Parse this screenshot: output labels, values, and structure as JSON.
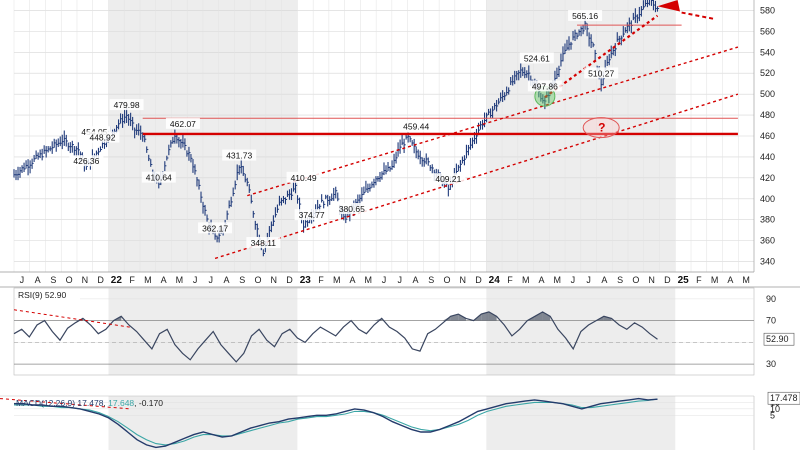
{
  "chart_data": [
    {
      "type": "ohlc",
      "title": "",
      "ylim": [
        330,
        590
      ],
      "y_ticks": [
        340,
        360,
        380,
        400,
        420,
        440,
        460,
        480,
        500,
        520,
        540,
        560,
        580
      ],
      "x_months": [
        "J",
        "A",
        "S",
        "O",
        "N",
        "D",
        "22",
        "F",
        "M",
        "A",
        "M",
        "J",
        "J",
        "A",
        "S",
        "O",
        "N",
        "D",
        "23",
        "F",
        "M",
        "A",
        "M",
        "J",
        "J",
        "A",
        "S",
        "O",
        "N",
        "D",
        "24",
        "F",
        "M",
        "A",
        "M",
        "J",
        "J",
        "A",
        "S",
        "O",
        "N",
        "D",
        "25",
        "F",
        "M",
        "A",
        "M"
      ],
      "price_path": [
        [
          0,
          423
        ],
        [
          3,
          440
        ],
        [
          6,
          456
        ],
        [
          8,
          447
        ],
        [
          9,
          430
        ],
        [
          11,
          452
        ],
        [
          13,
          472
        ],
        [
          14,
          480
        ],
        [
          15,
          466
        ],
        [
          16,
          462
        ],
        [
          17,
          430
        ],
        [
          18,
          412
        ],
        [
          19,
          440
        ],
        [
          20,
          462
        ],
        [
          22,
          440
        ],
        [
          23,
          410
        ],
        [
          24,
          380
        ],
        [
          25,
          362
        ],
        [
          26,
          370
        ],
        [
          27,
          400
        ],
        [
          28,
          432
        ],
        [
          29,
          415
        ],
        [
          30,
          378
        ],
        [
          31,
          350
        ],
        [
          32,
          375
        ],
        [
          33,
          395
        ],
        [
          35,
          410
        ],
        [
          36,
          375
        ],
        [
          38,
          395
        ],
        [
          40,
          405
        ],
        [
          41,
          380
        ],
        [
          43,
          400
        ],
        [
          45,
          420
        ],
        [
          47,
          430
        ],
        [
          48,
          450
        ],
        [
          49,
          458
        ],
        [
          50,
          445
        ],
        [
          52,
          430
        ],
        [
          53,
          420
        ],
        [
          54,
          409
        ],
        [
          55,
          425
        ],
        [
          56,
          440
        ],
        [
          57,
          455
        ],
        [
          58,
          470
        ],
        [
          59,
          480
        ],
        [
          60,
          490
        ],
        [
          61,
          500
        ],
        [
          62,
          512
        ],
        [
          63,
          522
        ],
        [
          64,
          520
        ],
        [
          65,
          505
        ],
        [
          66,
          492
        ],
        [
          67,
          510
        ],
        [
          68,
          532
        ],
        [
          69,
          548
        ],
        [
          70,
          558
        ],
        [
          71,
          565
        ],
        [
          72,
          545
        ],
        [
          73,
          510
        ],
        [
          74,
          535
        ],
        [
          75,
          550
        ],
        [
          76,
          562
        ],
        [
          77,
          570
        ],
        [
          78,
          580
        ],
        [
          79,
          590
        ],
        [
          80,
          582
        ]
      ],
      "annotations": [
        {
          "text": "454.05",
          "i": 10,
          "v": 454.05
        },
        {
          "text": "448.92",
          "i": 11,
          "v": 448.92
        },
        {
          "text": "426.36",
          "i": 9,
          "v": 426.36
        },
        {
          "text": "479.98",
          "i": 14,
          "v": 479.98
        },
        {
          "text": "462.07",
          "i": 21,
          "v": 462.07
        },
        {
          "text": "410.64",
          "i": 18,
          "v": 410.64
        },
        {
          "text": "362.17",
          "i": 25,
          "v": 362.17
        },
        {
          "text": "431.73",
          "i": 28,
          "v": 431.73
        },
        {
          "text": "410.49",
          "i": 36,
          "v": 410.49
        },
        {
          "text": "374.77",
          "i": 37,
          "v": 374.77
        },
        {
          "text": "348.11",
          "i": 31,
          "v": 348.11
        },
        {
          "text": "380.65",
          "i": 42,
          "v": 380.65
        },
        {
          "text": "459.44",
          "i": 50,
          "v": 459.44
        },
        {
          "text": "409.21",
          "i": 54,
          "v": 409.21
        },
        {
          "text": "524.61",
          "i": 65,
          "v": 524.61
        },
        {
          "text": "497.86",
          "i": 66,
          "v": 497.86
        },
        {
          "text": "565.16",
          "i": 71,
          "v": 565.16
        },
        {
          "text": "510.27",
          "i": 73,
          "v": 510.27
        }
      ],
      "horizontal_lines": [
        {
          "from": 16,
          "to": 90,
          "v": 477,
          "color": "#e05555",
          "width": 1
        },
        {
          "from": 16,
          "to": 90,
          "v": 462,
          "color": "#d40000",
          "width": 2.4
        },
        {
          "from": 70,
          "to": 83,
          "v": 566,
          "color": "#e05555",
          "width": 1
        }
      ],
      "trendlines": [
        {
          "i1": 25,
          "v1": 343,
          "i2": 90,
          "v2": 500,
          "color": "#d40000",
          "dashed": true
        },
        {
          "i1": 29,
          "v1": 403,
          "i2": 90,
          "v2": 545,
          "color": "#d40000",
          "dashed": true
        },
        {
          "i1": 66,
          "v1": 497,
          "i2": 80,
          "v2": 575,
          "color": "#d40000",
          "dashed": true,
          "width": 2.2
        }
      ],
      "marker": {
        "text": "?",
        "i": 73,
        "v": 468
      }
    },
    {
      "type": "line",
      "label": "RSI(9) 52.90",
      "value_label": "52.90",
      "ylim": [
        20,
        100
      ],
      "y_ticks": [
        30,
        50,
        70,
        90
      ],
      "reference_lines": [
        70,
        30
      ],
      "values": [
        58,
        62,
        55,
        66,
        70,
        60,
        52,
        63,
        68,
        72,
        66,
        58,
        62,
        70,
        74,
        66,
        60,
        52,
        44,
        58,
        62,
        48,
        40,
        34,
        44,
        52,
        60,
        48,
        40,
        32,
        40,
        56,
        62,
        52,
        46,
        58,
        62,
        54,
        50,
        58,
        64,
        60,
        56,
        64,
        70,
        62,
        58,
        66,
        72,
        64,
        60,
        54,
        44,
        42,
        58,
        62,
        68,
        74,
        76,
        72,
        70,
        76,
        78,
        74,
        66,
        56,
        62,
        70,
        74,
        78,
        74,
        62,
        54,
        44,
        60,
        66,
        70,
        74,
        72,
        66,
        62,
        68,
        64,
        58,
        52.9
      ]
    },
    {
      "type": "line",
      "label": "MACD(12,26,9) 17.478, 17.648, -0.170",
      "legend": {
        "name": "MACD(12,26,9)",
        "v1": "17.478",
        "v2": "17.648",
        "v3": "-0.170"
      },
      "value_label": "17.478",
      "ylim": [
        -22,
        20
      ],
      "y_ticks": [
        15,
        10,
        5
      ],
      "macd": [
        14,
        14,
        13,
        13,
        12,
        12,
        11,
        10,
        8,
        6,
        3,
        -2,
        -8,
        -14,
        -18,
        -20,
        -19,
        -16,
        -13,
        -10,
        -8,
        -10,
        -12,
        -11,
        -8,
        -5,
        -3,
        -1,
        0,
        2,
        3,
        4,
        5,
        5,
        6,
        8,
        10,
        9,
        7,
        4,
        0,
        -3,
        -6,
        -8,
        -8,
        -6,
        -3,
        0,
        4,
        8,
        10,
        12,
        14,
        15,
        16,
        17,
        16,
        15,
        14,
        12,
        10,
        12,
        14,
        15,
        16,
        17,
        18,
        17,
        17.478
      ],
      "signal": [
        13,
        13,
        13,
        12,
        12,
        11,
        11,
        10,
        9,
        7,
        4,
        0,
        -5,
        -10,
        -14,
        -17,
        -18,
        -17,
        -15,
        -12,
        -10,
        -10,
        -11,
        -11,
        -9,
        -7,
        -5,
        -3,
        -1,
        0,
        2,
        3,
        4,
        4,
        5,
        6,
        8,
        8,
        7,
        5,
        2,
        -1,
        -4,
        -6,
        -7,
        -6,
        -4,
        -2,
        1,
        5,
        8,
        10,
        12,
        13,
        14,
        15,
        15,
        15,
        14,
        13,
        11,
        11,
        12,
        13,
        14,
        15,
        16,
        16.5,
        17.648
      ]
    }
  ]
}
